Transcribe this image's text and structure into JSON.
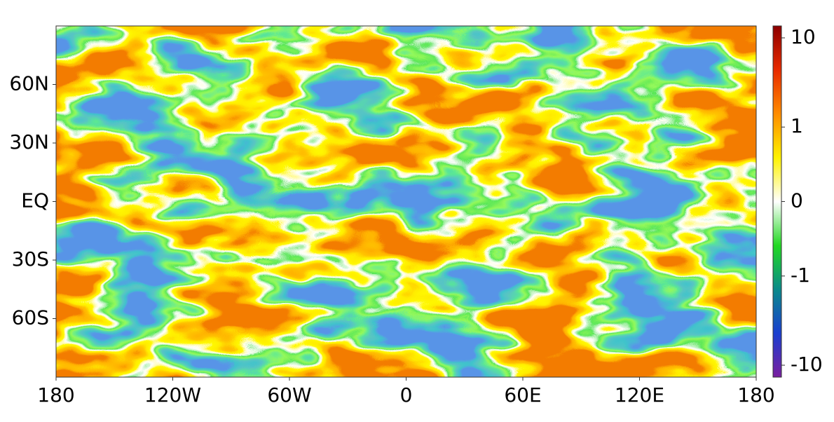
{
  "chart_data": {
    "type": "heatmap",
    "xlim": [
      -180,
      180
    ],
    "xticks": [
      {
        "value": -180,
        "label": "180"
      },
      {
        "value": -120,
        "label": "120W"
      },
      {
        "value": -60,
        "label": "60W"
      },
      0,
      {
        "value": 60,
        "label": "60E"
      },
      {
        "value": 120,
        "label": "120E"
      },
      {
        "value": 180,
        "label": "180"
      }
    ],
    "ylim": [
      -90,
      90
    ],
    "yticks": [
      {
        "value": -60,
        "label": "60S"
      },
      {
        "value": -30,
        "label": "30S"
      },
      {
        "value": 0,
        "label": "EQ"
      },
      {
        "value": 30,
        "label": "30N"
      },
      {
        "value": 60,
        "label": "60N"
      }
    ],
    "colorbar": {
      "scale": "symlog",
      "clim": [
        -13.6,
        13.6
      ],
      "ticks": [
        -10,
        -1,
        0,
        1,
        10
      ],
      "colors": [
        "#7a1fa0",
        "#1a3fd0",
        "#0a8a8a",
        "#22d822",
        "#ffffff",
        "#fff200",
        "#ff8c00",
        "#e82a00",
        "#8c0000"
      ]
    }
  }
}
